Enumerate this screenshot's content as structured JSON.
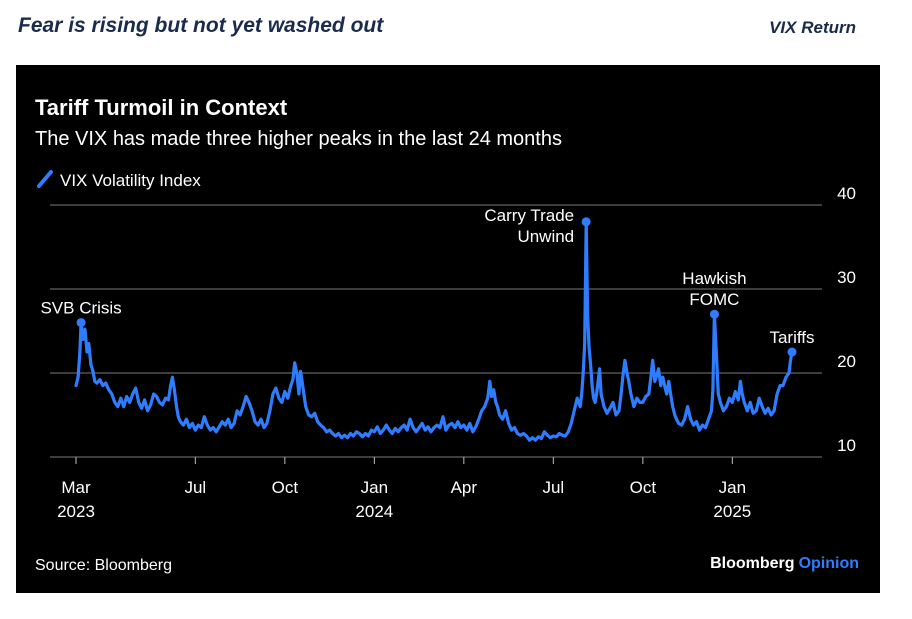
{
  "header": {
    "headline": "Fear is rising but not yet washed out",
    "section_label": "VIX Return"
  },
  "chart_data": {
    "type": "line",
    "title": "Tariff Turmoil in Context",
    "subtitle": "The VIX has made three higher peaks in the last 24 months",
    "legend": [
      "VIX Volatility Index"
    ],
    "legend_position": "top-left",
    "ylim": [
      10,
      40
    ],
    "yticks": [
      10,
      20,
      30,
      40
    ],
    "grid": true,
    "line_color": "#2f7dff",
    "x_ticks": [
      {
        "label": "Mar",
        "year": "2023",
        "x": 0
      },
      {
        "label": "Jul",
        "year": "",
        "x": 4
      },
      {
        "label": "Oct",
        "year": "",
        "x": 7
      },
      {
        "label": "Jan",
        "year": "2024",
        "x": 10
      },
      {
        "label": "Apr",
        "year": "",
        "x": 13
      },
      {
        "label": "Jul",
        "year": "",
        "x": 16
      },
      {
        "label": "Oct",
        "year": "",
        "x": 19
      },
      {
        "label": "Jan",
        "year": "2025",
        "x": 22
      }
    ],
    "x_unit": "months since Mar 1, 2023",
    "series": [
      {
        "name": "VIX Volatility Index",
        "points": [
          [
            0.0,
            18.5
          ],
          [
            0.07,
            19.5
          ],
          [
            0.13,
            22.5
          ],
          [
            0.17,
            26.0
          ],
          [
            0.23,
            24.0
          ],
          [
            0.3,
            25.2
          ],
          [
            0.37,
            22.5
          ],
          [
            0.43,
            23.5
          ],
          [
            0.5,
            21.0
          ],
          [
            0.57,
            20.2
          ],
          [
            0.63,
            19.0
          ],
          [
            0.7,
            18.8
          ],
          [
            0.8,
            19.2
          ],
          [
            0.9,
            18.5
          ],
          [
            1.0,
            18.8
          ],
          [
            1.1,
            18.0
          ],
          [
            1.2,
            17.5
          ],
          [
            1.3,
            16.5
          ],
          [
            1.4,
            16.0
          ],
          [
            1.5,
            17.0
          ],
          [
            1.6,
            16.0
          ],
          [
            1.7,
            17.2
          ],
          [
            1.8,
            16.5
          ],
          [
            1.9,
            17.5
          ],
          [
            2.0,
            18.2
          ],
          [
            2.1,
            16.5
          ],
          [
            2.2,
            15.8
          ],
          [
            2.3,
            16.8
          ],
          [
            2.4,
            15.5
          ],
          [
            2.5,
            16.2
          ],
          [
            2.6,
            17.5
          ],
          [
            2.7,
            17.2
          ],
          [
            2.8,
            16.5
          ],
          [
            2.9,
            16.2
          ],
          [
            3.0,
            17.0
          ],
          [
            3.1,
            16.8
          ],
          [
            3.17,
            18.5
          ],
          [
            3.23,
            19.5
          ],
          [
            3.3,
            18.0
          ],
          [
            3.37,
            16.0
          ],
          [
            3.43,
            14.8
          ],
          [
            3.5,
            14.2
          ],
          [
            3.6,
            13.8
          ],
          [
            3.7,
            14.5
          ],
          [
            3.8,
            13.5
          ],
          [
            3.9,
            14.0
          ],
          [
            4.0,
            13.2
          ],
          [
            4.1,
            13.8
          ],
          [
            4.2,
            13.5
          ],
          [
            4.3,
            14.8
          ],
          [
            4.4,
            13.8
          ],
          [
            4.5,
            13.2
          ],
          [
            4.6,
            13.5
          ],
          [
            4.7,
            13.0
          ],
          [
            4.8,
            13.6
          ],
          [
            4.9,
            14.2
          ],
          [
            5.0,
            13.8
          ],
          [
            5.1,
            14.5
          ],
          [
            5.2,
            13.5
          ],
          [
            5.3,
            14.0
          ],
          [
            5.4,
            15.5
          ],
          [
            5.5,
            15.0
          ],
          [
            5.6,
            16.0
          ],
          [
            5.7,
            17.2
          ],
          [
            5.8,
            16.5
          ],
          [
            5.9,
            15.5
          ],
          [
            6.0,
            14.2
          ],
          [
            6.1,
            13.8
          ],
          [
            6.2,
            14.5
          ],
          [
            6.3,
            13.5
          ],
          [
            6.4,
            14.0
          ],
          [
            6.5,
            15.5
          ],
          [
            6.6,
            17.5
          ],
          [
            6.7,
            18.2
          ],
          [
            6.8,
            17.0
          ],
          [
            6.9,
            16.5
          ],
          [
            7.0,
            17.8
          ],
          [
            7.1,
            17.0
          ],
          [
            7.2,
            18.5
          ],
          [
            7.27,
            19.2
          ],
          [
            7.33,
            21.2
          ],
          [
            7.4,
            20.0
          ],
          [
            7.47,
            17.5
          ],
          [
            7.53,
            20.2
          ],
          [
            7.6,
            18.5
          ],
          [
            7.7,
            16.0
          ],
          [
            7.8,
            15.0
          ],
          [
            7.9,
            14.8
          ],
          [
            8.0,
            15.2
          ],
          [
            8.1,
            14.2
          ],
          [
            8.2,
            13.8
          ],
          [
            8.3,
            13.5
          ],
          [
            8.4,
            13.0
          ],
          [
            8.5,
            13.2
          ],
          [
            8.6,
            12.8
          ],
          [
            8.7,
            12.5
          ],
          [
            8.8,
            12.8
          ],
          [
            8.9,
            12.3
          ],
          [
            9.0,
            12.6
          ],
          [
            9.1,
            12.3
          ],
          [
            9.2,
            12.8
          ],
          [
            9.3,
            12.5
          ],
          [
            9.4,
            13.0
          ],
          [
            9.5,
            12.8
          ],
          [
            9.6,
            12.4
          ],
          [
            9.7,
            12.8
          ],
          [
            9.8,
            12.5
          ],
          [
            9.9,
            13.2
          ],
          [
            10.0,
            13.0
          ],
          [
            10.1,
            13.6
          ],
          [
            10.2,
            12.8
          ],
          [
            10.3,
            13.2
          ],
          [
            10.4,
            13.8
          ],
          [
            10.5,
            13.2
          ],
          [
            10.6,
            12.8
          ],
          [
            10.7,
            13.4
          ],
          [
            10.8,
            13.0
          ],
          [
            10.9,
            13.5
          ],
          [
            11.0,
            13.8
          ],
          [
            11.1,
            13.2
          ],
          [
            11.2,
            14.5
          ],
          [
            11.3,
            13.5
          ],
          [
            11.4,
            13.0
          ],
          [
            11.5,
            13.5
          ],
          [
            11.6,
            14.0
          ],
          [
            11.7,
            13.2
          ],
          [
            11.8,
            13.6
          ],
          [
            11.9,
            13.0
          ],
          [
            12.0,
            13.5
          ],
          [
            12.1,
            13.8
          ],
          [
            12.2,
            13.5
          ],
          [
            12.3,
            14.8
          ],
          [
            12.4,
            13.2
          ],
          [
            12.5,
            13.8
          ],
          [
            12.6,
            14.0
          ],
          [
            12.7,
            13.5
          ],
          [
            12.8,
            14.2
          ],
          [
            12.9,
            13.5
          ],
          [
            13.0,
            13.8
          ],
          [
            13.1,
            13.2
          ],
          [
            13.2,
            14.0
          ],
          [
            13.3,
            13.0
          ],
          [
            13.4,
            13.6
          ],
          [
            13.5,
            14.5
          ],
          [
            13.6,
            15.5
          ],
          [
            13.7,
            16.0
          ],
          [
            13.8,
            17.0
          ],
          [
            13.87,
            19.0
          ],
          [
            13.93,
            17.2
          ],
          [
            14.0,
            18.0
          ],
          [
            14.07,
            16.5
          ],
          [
            14.13,
            16.0
          ],
          [
            14.2,
            15.0
          ],
          [
            14.3,
            14.5
          ],
          [
            14.4,
            15.5
          ],
          [
            14.5,
            14.0
          ],
          [
            14.6,
            13.2
          ],
          [
            14.7,
            13.5
          ],
          [
            14.8,
            12.8
          ],
          [
            14.9,
            12.6
          ],
          [
            15.0,
            12.8
          ],
          [
            15.1,
            12.5
          ],
          [
            15.2,
            12.0
          ],
          [
            15.3,
            12.3
          ],
          [
            15.4,
            12.0
          ],
          [
            15.5,
            12.4
          ],
          [
            15.6,
            12.2
          ],
          [
            15.7,
            13.0
          ],
          [
            15.8,
            12.6
          ],
          [
            15.9,
            12.3
          ],
          [
            16.0,
            12.5
          ],
          [
            16.1,
            12.4
          ],
          [
            16.2,
            12.8
          ],
          [
            16.3,
            12.6
          ],
          [
            16.4,
            12.5
          ],
          [
            16.5,
            13.0
          ],
          [
            16.6,
            14.0
          ],
          [
            16.7,
            15.5
          ],
          [
            16.8,
            17.0
          ],
          [
            16.85,
            16.5
          ],
          [
            16.9,
            16.0
          ],
          [
            16.95,
            17.5
          ],
          [
            17.0,
            20.0
          ],
          [
            17.05,
            23.5
          ],
          [
            17.1,
            38.0
          ],
          [
            17.15,
            27.0
          ],
          [
            17.2,
            23.0
          ],
          [
            17.25,
            21.0
          ],
          [
            17.3,
            18.5
          ],
          [
            17.35,
            17.0
          ],
          [
            17.4,
            16.5
          ],
          [
            17.45,
            17.5
          ],
          [
            17.5,
            19.0
          ],
          [
            17.55,
            20.5
          ],
          [
            17.6,
            17.5
          ],
          [
            17.7,
            16.0
          ],
          [
            17.8,
            15.2
          ],
          [
            17.9,
            15.8
          ],
          [
            18.0,
            16.5
          ],
          [
            18.1,
            15.0
          ],
          [
            18.2,
            15.5
          ],
          [
            18.27,
            17.5
          ],
          [
            18.33,
            19.5
          ],
          [
            18.4,
            21.5
          ],
          [
            18.47,
            20.0
          ],
          [
            18.53,
            19.0
          ],
          [
            18.6,
            17.5
          ],
          [
            18.7,
            16.0
          ],
          [
            18.8,
            17.0
          ],
          [
            18.9,
            16.5
          ],
          [
            19.0,
            16.5
          ],
          [
            19.1,
            17.2
          ],
          [
            19.2,
            17.5
          ],
          [
            19.27,
            19.5
          ],
          [
            19.33,
            21.5
          ],
          [
            19.4,
            19.0
          ],
          [
            19.47,
            19.8
          ],
          [
            19.53,
            20.5
          ],
          [
            19.6,
            18.5
          ],
          [
            19.67,
            19.5
          ],
          [
            19.73,
            18.5
          ],
          [
            19.8,
            17.5
          ],
          [
            19.87,
            19.0
          ],
          [
            19.93,
            17.5
          ],
          [
            20.0,
            16.0
          ],
          [
            20.07,
            15.0
          ],
          [
            20.13,
            14.5
          ],
          [
            20.2,
            14.0
          ],
          [
            20.3,
            13.8
          ],
          [
            20.4,
            14.5
          ],
          [
            20.5,
            16.0
          ],
          [
            20.6,
            14.5
          ],
          [
            20.7,
            13.8
          ],
          [
            20.8,
            14.2
          ],
          [
            20.9,
            13.2
          ],
          [
            21.0,
            13.8
          ],
          [
            21.1,
            13.5
          ],
          [
            21.2,
            14.5
          ],
          [
            21.3,
            15.5
          ],
          [
            21.35,
            18.0
          ],
          [
            21.4,
            27.0
          ],
          [
            21.47,
            22.0
          ],
          [
            21.53,
            17.5
          ],
          [
            21.6,
            16.5
          ],
          [
            21.7,
            15.5
          ],
          [
            21.8,
            16.0
          ],
          [
            21.9,
            17.0
          ],
          [
            22.0,
            16.5
          ],
          [
            22.1,
            17.8
          ],
          [
            22.2,
            16.8
          ],
          [
            22.27,
            19.0
          ],
          [
            22.33,
            17.5
          ],
          [
            22.4,
            16.5
          ],
          [
            22.5,
            15.5
          ],
          [
            22.6,
            16.5
          ],
          [
            22.7,
            15.2
          ],
          [
            22.8,
            15.5
          ],
          [
            22.9,
            17.0
          ],
          [
            23.0,
            16.0
          ],
          [
            23.1,
            15.2
          ],
          [
            23.2,
            15.8
          ],
          [
            23.3,
            15.0
          ],
          [
            23.4,
            15.5
          ],
          [
            23.5,
            17.5
          ],
          [
            23.6,
            18.5
          ],
          [
            23.7,
            18.5
          ],
          [
            23.8,
            19.5
          ],
          [
            23.9,
            20.0
          ],
          [
            23.95,
            21.5
          ],
          [
            24.0,
            22.5
          ]
        ]
      }
    ],
    "annotations": [
      {
        "lines": [
          "SVB Crisis"
        ],
        "x": 0.17,
        "y": 26.0
      },
      {
        "lines": [
          "Carry Trade",
          "Unwind"
        ],
        "x": 17.1,
        "y": 38.0
      },
      {
        "lines": [
          "Hawkish",
          "FOMC"
        ],
        "x": 21.4,
        "y": 27.0
      },
      {
        "lines": [
          "Tariffs"
        ],
        "x": 24.0,
        "y": 22.5
      }
    ],
    "source": "Source: Bloomberg",
    "brand": {
      "primary": "Bloomberg",
      "secondary": "Opinion"
    }
  }
}
